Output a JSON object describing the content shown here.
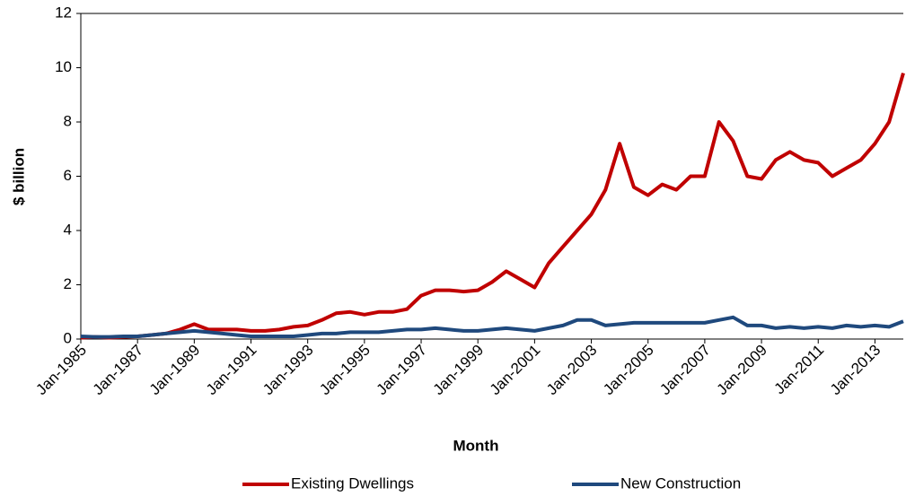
{
  "chart_data": {
    "type": "line",
    "x_label": "Month",
    "y_label": "$ billion",
    "categories": [
      "Jan-1985",
      null,
      null,
      null,
      "Jan-1987",
      null,
      null,
      null,
      "Jan-1989",
      null,
      null,
      null,
      "Jan-1991",
      null,
      null,
      null,
      "Jan-1993",
      null,
      null,
      null,
      "Jan-1995",
      null,
      null,
      null,
      "Jan-1997",
      null,
      null,
      null,
      "Jan-1999",
      null,
      null,
      null,
      "Jan-2001",
      null,
      null,
      null,
      "Jan-2003",
      null,
      null,
      null,
      "Jan-2005",
      null,
      null,
      null,
      "Jan-2007",
      null,
      null,
      null,
      "Jan-2009",
      null,
      null,
      null,
      "Jan-2011",
      null,
      null,
      null,
      "Jan-2013",
      null,
      null
    ],
    "series": [
      {
        "name": "Existing Dwellings",
        "color": "#c00000",
        "values": [
          0.05,
          0.08,
          0.05,
          0.08,
          0.1,
          0.15,
          0.2,
          0.35,
          0.55,
          0.35,
          0.35,
          0.35,
          0.3,
          0.3,
          0.35,
          0.45,
          0.5,
          0.7,
          0.95,
          1.0,
          0.9,
          1.0,
          1.0,
          1.1,
          1.6,
          1.8,
          1.8,
          1.75,
          1.8,
          2.1,
          2.5,
          2.2,
          1.9,
          2.8,
          3.4,
          4.0,
          4.6,
          5.5,
          7.2,
          5.6,
          5.3,
          5.7,
          5.5,
          6.0,
          6.0,
          8.0,
          7.3,
          6.0,
          5.9,
          6.6,
          6.9,
          6.6,
          6.5,
          6.0,
          6.3,
          6.6,
          7.2,
          8.0,
          9.8
        ]
      },
      {
        "name": "New Construction",
        "color": "#1f497d",
        "values": [
          0.1,
          0.08,
          0.08,
          0.1,
          0.1,
          0.15,
          0.2,
          0.25,
          0.3,
          0.25,
          0.2,
          0.15,
          0.1,
          0.1,
          0.1,
          0.1,
          0.15,
          0.2,
          0.2,
          0.25,
          0.25,
          0.25,
          0.3,
          0.35,
          0.35,
          0.4,
          0.35,
          0.3,
          0.3,
          0.35,
          0.4,
          0.35,
          0.3,
          0.4,
          0.5,
          0.7,
          0.7,
          0.5,
          0.55,
          0.6,
          0.6,
          0.6,
          0.6,
          0.6,
          0.6,
          0.7,
          0.8,
          0.5,
          0.5,
          0.4,
          0.45,
          0.4,
          0.45,
          0.4,
          0.5,
          0.45,
          0.5,
          0.45,
          0.65
        ]
      }
    ],
    "ylim": [
      0,
      12
    ],
    "yticks": [
      0,
      2,
      4,
      6,
      8,
      10,
      12
    ],
    "grid": false
  }
}
